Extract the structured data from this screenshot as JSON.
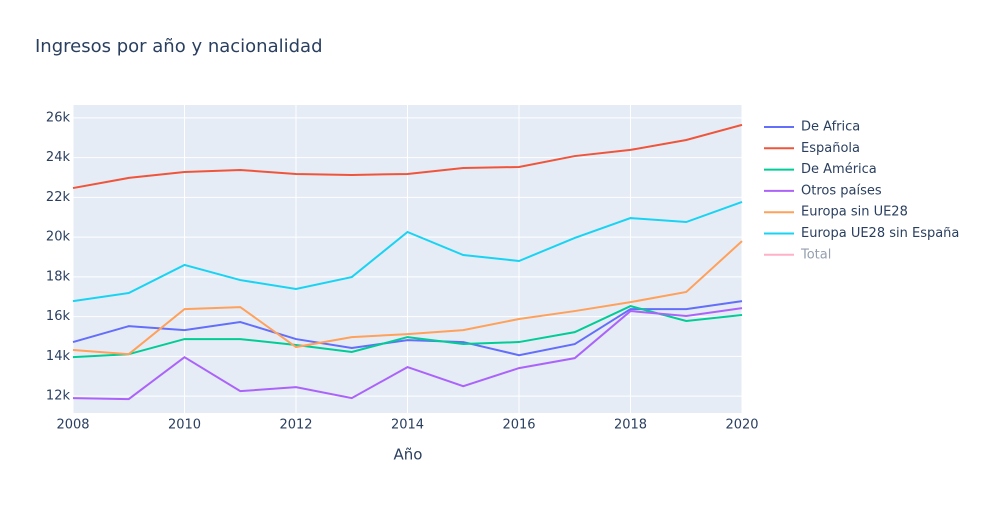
{
  "chart_data": {
    "type": "line",
    "title": "Ingresos por año y nacionalidad",
    "x_label": "Año",
    "x": [
      2008,
      2009,
      2010,
      2011,
      2012,
      2013,
      2014,
      2015,
      2016,
      2017,
      2018,
      2019,
      2020
    ],
    "xlim": [
      2008,
      2020
    ],
    "xticks": [
      2008,
      2010,
      2012,
      2014,
      2016,
      2018,
      2020
    ],
    "ylim": [
      11150,
      26650
    ],
    "yticks": [
      {
        "value": 12000,
        "label": "12k"
      },
      {
        "value": 14000,
        "label": "14k"
      },
      {
        "value": 16000,
        "label": "16k"
      },
      {
        "value": 18000,
        "label": "18k"
      },
      {
        "value": 20000,
        "label": "20k"
      },
      {
        "value": 22000,
        "label": "22k"
      },
      {
        "value": 24000,
        "label": "24k"
      },
      {
        "value": 26000,
        "label": "26k"
      }
    ],
    "grid": true,
    "legend": "right",
    "series": [
      {
        "name": "De Africa",
        "color": "#636efa",
        "values": [
          14720,
          15520,
          15320,
          15730,
          14870,
          14420,
          14820,
          14720,
          14060,
          14620,
          16380,
          16380,
          16780
        ]
      },
      {
        "name": "Española",
        "color": "#EF553B",
        "values": [
          22470,
          22980,
          23280,
          23380,
          23180,
          23130,
          23180,
          23480,
          23530,
          24080,
          24390,
          24890,
          25650
        ]
      },
      {
        "name": "De América",
        "color": "#00cc96",
        "values": [
          13960,
          14110,
          14870,
          14870,
          14570,
          14220,
          14970,
          14620,
          14720,
          15220,
          16530,
          15780,
          16080
        ]
      },
      {
        "name": "Otros países",
        "color": "#ab63fa",
        "values": [
          11900,
          11850,
          13960,
          12250,
          12450,
          11900,
          13460,
          12500,
          13410,
          13910,
          16280,
          16030,
          16430
        ]
      },
      {
        "name": "Europa sin UE28",
        "color": "#FFA15A",
        "values": [
          14320,
          14110,
          16380,
          16480,
          14470,
          14970,
          15120,
          15320,
          15880,
          16280,
          16730,
          17240,
          19800
        ]
      },
      {
        "name": "Europa UE28 sin España",
        "color": "#19d3f3",
        "values": [
          16780,
          17190,
          18600,
          17840,
          17390,
          17990,
          20260,
          19100,
          18800,
          19960,
          20960,
          20760,
          21770
        ]
      },
      {
        "name": "Total",
        "color": "#FF6692",
        "visible": "legendonly",
        "values": [
          null,
          null,
          null,
          null,
          null,
          null,
          null,
          null,
          null,
          null,
          null,
          null,
          null
        ]
      }
    ]
  }
}
